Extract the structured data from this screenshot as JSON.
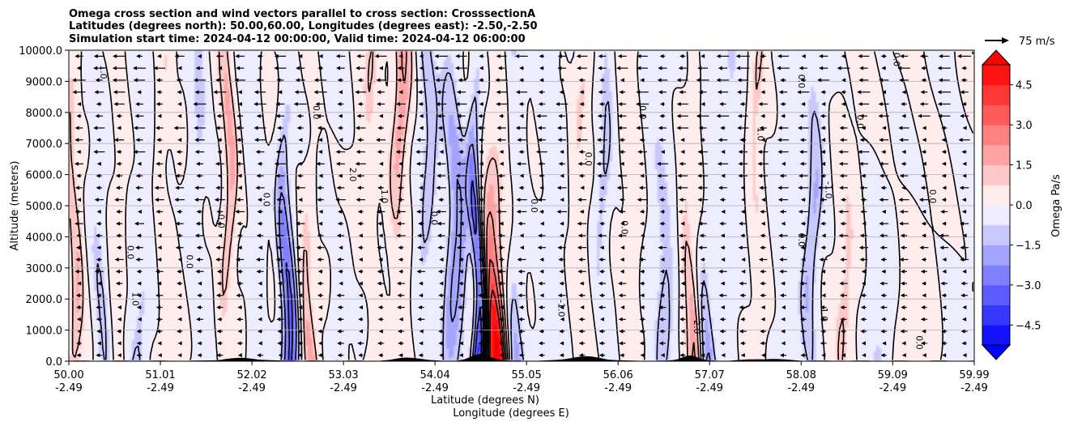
{
  "chart_data": {
    "type": "contour",
    "title_lines": [
      "Omega cross section and wind vectors parallel to cross section: CrosssectionA",
      "Latitudes (degrees north): 50.00,60.00, Longitudes (degrees east): -2.50,-2.50",
      "Simulation start time: 2024-04-12 00:00:00, Valid time: 2024-04-12 06:00:00"
    ],
    "ylabel": "Altitude (meters)",
    "xlabel_lines": [
      "Latitude (degrees N)",
      "Longitude (degrees E)"
    ],
    "ylim": [
      0,
      10000
    ],
    "y_ticks": [
      0,
      1000,
      2000,
      3000,
      4000,
      5000,
      6000,
      7000,
      8000,
      9000,
      10000
    ],
    "y_tick_labels": [
      "0.0",
      "1000.0",
      "2000.0",
      "3000.0",
      "4000.0",
      "5000.0",
      "6000.0",
      "7000.0",
      "8000.0",
      "9000.0",
      "10000.0"
    ],
    "xlim": [
      50.0,
      59.99
    ],
    "x_ticks": [
      50.0,
      51.01,
      52.02,
      53.03,
      54.04,
      55.05,
      56.06,
      57.07,
      58.08,
      59.09,
      59.99
    ],
    "x_tick_labels": [
      [
        "50.00",
        "-2.49"
      ],
      [
        "51.01",
        "-2.49"
      ],
      [
        "52.02",
        "-2.49"
      ],
      [
        "53.03",
        "-2.49"
      ],
      [
        "54.04",
        "-2.49"
      ],
      [
        "55.05",
        "-2.49"
      ],
      [
        "56.06",
        "-2.49"
      ],
      [
        "57.07",
        "-2.49"
      ],
      [
        "58.08",
        "-2.49"
      ],
      [
        "59.09",
        "-2.49"
      ],
      [
        "59.99",
        "-2.49"
      ]
    ],
    "grid": "horizontal",
    "colorbar": {
      "label": "Omega Pa/s",
      "range": [
        -5.25,
        5.25
      ],
      "levels": [
        -5.25,
        -4.5,
        -3.75,
        -3.0,
        -2.25,
        -1.5,
        -0.75,
        0,
        0.75,
        1.5,
        2.25,
        3.0,
        3.75,
        4.5,
        5.25
      ],
      "tick_values": [
        -4.5,
        -3.0,
        -1.5,
        0.0,
        1.5,
        3.0,
        4.5
      ],
      "tick_labels": [
        "−4.5",
        "−3.0",
        "−1.5",
        "0.0",
        "1.5",
        "3.0",
        "4.5"
      ],
      "extend": "both",
      "cmap": "bwr"
    },
    "quiver_key": {
      "label": "75 m/s",
      "speed": 75
    },
    "omega_columns": [
      {
        "lat": 50.05,
        "amp": 1.8,
        "width": 0.08
      },
      {
        "lat": 50.35,
        "amp": -1.2,
        "width": 0.1
      },
      {
        "lat": 50.55,
        "amp": 0.9,
        "width": 0.08
      },
      {
        "lat": 50.8,
        "amp": -1.6,
        "width": 0.1
      },
      {
        "lat": 51.05,
        "amp": 1.4,
        "width": 0.08
      },
      {
        "lat": 51.4,
        "amp": -1.4,
        "width": 0.1
      },
      {
        "lat": 51.75,
        "amp": 2.3,
        "width": 0.08
      },
      {
        "lat": 52.05,
        "amp": -0.9,
        "width": 0.08
      },
      {
        "lat": 52.4,
        "amp": -3.4,
        "width": 0.09
      },
      {
        "lat": 52.65,
        "amp": 2.1,
        "width": 0.08
      },
      {
        "lat": 53.0,
        "amp": -1.3,
        "width": 0.1
      },
      {
        "lat": 53.35,
        "amp": 1.6,
        "width": 0.09
      },
      {
        "lat": 53.65,
        "amp": 3.0,
        "width": 0.1
      },
      {
        "lat": 53.95,
        "amp": -1.8,
        "width": 0.1
      },
      {
        "lat": 54.25,
        "amp": -2.6,
        "width": 0.12
      },
      {
        "lat": 54.5,
        "amp": -4.8,
        "width": 0.07
      },
      {
        "lat": 54.68,
        "amp": 6.0,
        "width": 0.12
      },
      {
        "lat": 54.95,
        "amp": -3.0,
        "width": 0.1
      },
      {
        "lat": 55.3,
        "amp": -1.0,
        "width": 0.12
      },
      {
        "lat": 55.65,
        "amp": 1.3,
        "width": 0.09
      },
      {
        "lat": 55.9,
        "amp": -1.5,
        "width": 0.09
      },
      {
        "lat": 56.2,
        "amp": 0.8,
        "width": 0.1
      },
      {
        "lat": 56.55,
        "amp": -1.4,
        "width": 0.12
      },
      {
        "lat": 56.85,
        "amp": 2.2,
        "width": 0.08
      },
      {
        "lat": 57.05,
        "amp": -2.9,
        "width": 0.08
      },
      {
        "lat": 57.35,
        "amp": -1.2,
        "width": 0.1
      },
      {
        "lat": 57.6,
        "amp": 1.5,
        "width": 0.08
      },
      {
        "lat": 57.9,
        "amp": -0.6,
        "width": 0.15
      },
      {
        "lat": 58.2,
        "amp": -1.7,
        "width": 0.09
      },
      {
        "lat": 58.55,
        "amp": 0.9,
        "width": 0.1
      },
      {
        "lat": 58.9,
        "amp": -0.7,
        "width": 0.12
      },
      {
        "lat": 59.3,
        "amp": 0.9,
        "width": 0.15
      },
      {
        "lat": 59.75,
        "amp": -0.5,
        "width": 0.15
      }
    ],
    "contour_labels": [
      {
        "lat": 50.35,
        "alt": 9300,
        "text": "1.0"
      },
      {
        "lat": 50.7,
        "alt": 2000,
        "text": "1.0"
      },
      {
        "lat": 50.65,
        "alt": 3500,
        "text": "0.0"
      },
      {
        "lat": 51.3,
        "alt": 3200,
        "text": "0.0"
      },
      {
        "lat": 51.65,
        "alt": 4500,
        "text": "0.0"
      },
      {
        "lat": 52.15,
        "alt": 5200,
        "text": "0.0"
      },
      {
        "lat": 52.7,
        "alt": 8000,
        "text": "0.0"
      },
      {
        "lat": 53.1,
        "alt": 6000,
        "text": "2.0"
      },
      {
        "lat": 53.45,
        "alt": 5300,
        "text": "1.0"
      },
      {
        "lat": 54.0,
        "alt": 4600,
        "text": "0.0"
      },
      {
        "lat": 55.1,
        "alt": 5000,
        "text": "0.0"
      },
      {
        "lat": 55.4,
        "alt": 1700,
        "text": "-1.0"
      },
      {
        "lat": 55.7,
        "alt": 6500,
        "text": "0.0"
      },
      {
        "lat": 56.1,
        "alt": 4300,
        "text": "0.0"
      },
      {
        "lat": 56.3,
        "alt": 8000,
        "text": "0.0"
      },
      {
        "lat": 56.9,
        "alt": 1100,
        "text": "2.0"
      },
      {
        "lat": 57.6,
        "alt": 7300,
        "text": "1.0"
      },
      {
        "lat": 58.05,
        "alt": 3900,
        "text": "0.0"
      },
      {
        "lat": 58.35,
        "alt": 5500,
        "text": "-1.0"
      },
      {
        "lat": 58.05,
        "alt": 9000,
        "text": "0.0"
      },
      {
        "lat": 58.7,
        "alt": 7700,
        "text": "0.0"
      },
      {
        "lat": 59.1,
        "alt": 9700,
        "text": "0.0"
      },
      {
        "lat": 59.5,
        "alt": 5300,
        "text": "0.0"
      },
      {
        "lat": 58.3,
        "alt": 1500,
        "text": "1.0"
      },
      {
        "lat": 59.35,
        "alt": 600,
        "text": "0.0"
      }
    ]
  },
  "colors": {
    "positive_max": "#ff0000",
    "negative_max": "#0000ff",
    "neutral": "#ffffff",
    "terrain": "#000000"
  }
}
